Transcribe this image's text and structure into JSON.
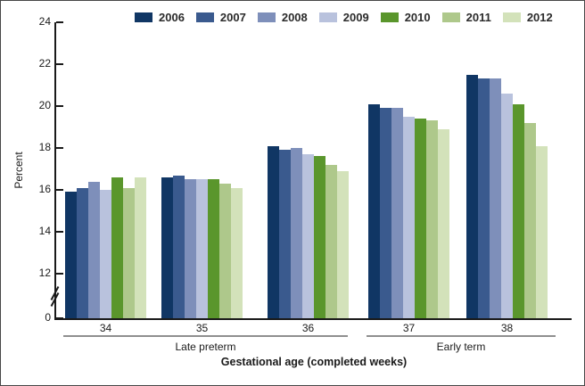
{
  "chart_data": {
    "type": "bar",
    "title": "",
    "ylabel": "Percent",
    "xlabel": "Gestational age (completed weeks)",
    "categories": [
      "34",
      "35",
      "36",
      "37",
      "38"
    ],
    "category_groups": [
      {
        "label": "Late preterm",
        "categories": [
          "34",
          "35",
          "36"
        ]
      },
      {
        "label": "Early term",
        "categories": [
          "37",
          "38"
        ]
      }
    ],
    "y_ticks": [
      0,
      12,
      14,
      16,
      18,
      20,
      22,
      24
    ],
    "y_axis_break_between": [
      0,
      12
    ],
    "ylim": [
      0,
      24
    ],
    "grid": false,
    "legend_position": "top",
    "series": [
      {
        "name": "2006",
        "color": "#103664",
        "values": [
          15.9,
          16.6,
          18.1,
          20.1,
          21.5
        ]
      },
      {
        "name": "2007",
        "color": "#3a5a8e",
        "values": [
          16.1,
          16.7,
          17.9,
          19.9,
          21.3
        ]
      },
      {
        "name": "2008",
        "color": "#7e8fba",
        "values": [
          16.4,
          16.5,
          18.0,
          19.9,
          21.3
        ]
      },
      {
        "name": "2009",
        "color": "#b9c2dd",
        "values": [
          16.0,
          16.5,
          17.7,
          19.5,
          20.6
        ]
      },
      {
        "name": "2010",
        "color": "#5a962c",
        "values": [
          16.6,
          16.5,
          17.6,
          19.4,
          20.1
        ]
      },
      {
        "name": "2011",
        "color": "#aec88b",
        "values": [
          16.1,
          16.3,
          17.2,
          19.3,
          19.2
        ]
      },
      {
        "name": "2012",
        "color": "#d3e2ba",
        "values": [
          16.6,
          16.1,
          16.9,
          18.9,
          18.1
        ]
      }
    ]
  }
}
